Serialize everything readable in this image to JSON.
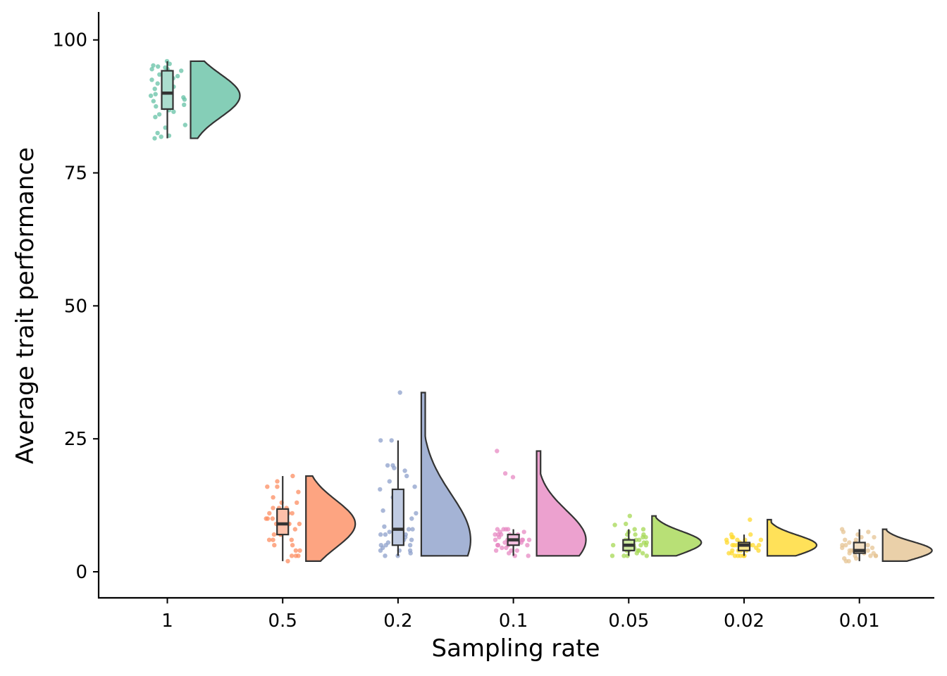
{
  "chart_data": {
    "type": "raincloud",
    "xlabel": "Sampling rate",
    "ylabel": "Average trait performance",
    "ylim": [
      -5,
      105
    ],
    "yticks": [
      0,
      25,
      50,
      75,
      100
    ],
    "grid": false,
    "legend": "none",
    "groups": [
      {
        "label": "1",
        "color": "#66C2A5",
        "box": {
          "min": 81.5,
          "q1": 87,
          "median": 90,
          "q3": 94.2,
          "max": 96
        },
        "violin": {
          "min": 81.5,
          "max": 96,
          "mode": 89.5
        },
        "points": [
          96,
          95.5,
          95.2,
          95,
          94.8,
          94.5,
          94.5,
          94.2,
          94,
          93.8,
          93.5,
          93.2,
          92.8,
          92.5,
          92,
          91.8,
          91.2,
          90.8,
          90.5,
          90,
          89.8,
          89.5,
          89.2,
          88.8,
          88.5,
          88,
          87.8,
          87.5,
          87.2,
          86.8,
          86.5,
          86,
          85.5,
          84,
          83.5,
          82.5,
          82,
          81.8,
          81.5
        ]
      },
      {
        "label": "0.5",
        "color": "#FC8D62",
        "box": {
          "min": 2,
          "q1": 7,
          "median": 9,
          "q3": 11.8,
          "max": 18
        },
        "violin": {
          "min": 2,
          "max": 18,
          "mode": 9
        },
        "points": [
          18,
          17,
          16,
          16,
          15,
          14,
          13,
          13,
          12,
          12,
          12,
          11,
          11,
          11,
          10,
          10,
          10,
          10,
          9,
          9,
          9,
          9,
          9,
          8,
          8,
          8,
          8,
          7,
          7,
          7,
          6,
          6,
          6,
          5,
          5,
          4,
          4,
          3,
          3,
          3,
          2
        ]
      },
      {
        "label": "0.2",
        "color": "#8DA0CB",
        "box": {
          "min": 3,
          "q1": 5,
          "median": 8,
          "q3": 15.5,
          "max": 24.7
        },
        "violin": {
          "min": 3,
          "max": 33.7,
          "mode": 6
        },
        "points": [
          33.7,
          24.7,
          24.7,
          20,
          20,
          19.5,
          19,
          18,
          17,
          16,
          15.5,
          14,
          13,
          12,
          11.5,
          11,
          10,
          10,
          9,
          9,
          8.5,
          8,
          8,
          7.5,
          7,
          7,
          7,
          6.5,
          6,
          6,
          5.5,
          5,
          5,
          5,
          4.5,
          4,
          4,
          4,
          3.5,
          3,
          3
        ]
      },
      {
        "label": "0.1",
        "color": "#E78AC3",
        "box": {
          "min": 3,
          "q1": 5,
          "median": 6,
          "q3": 7,
          "max": 8
        },
        "violin": {
          "min": 3,
          "max": 22.7,
          "mode": 6
        },
        "points": [
          22.7,
          18.5,
          17.8,
          8,
          8,
          8,
          8,
          7.5,
          7.5,
          7,
          7,
          7,
          7,
          7,
          6.5,
          6.5,
          6,
          6,
          6,
          6,
          6,
          6,
          6,
          5.5,
          5.5,
          5.5,
          5,
          5,
          5,
          5,
          5,
          4.5,
          4.5,
          4,
          4,
          4,
          3.5,
          3,
          3
        ]
      },
      {
        "label": "0.05",
        "color": "#A6D854",
        "box": {
          "min": 3,
          "q1": 4,
          "median": 5,
          "q3": 6,
          "max": 8
        },
        "violin": {
          "min": 3,
          "max": 10.5,
          "mode": 5.5
        },
        "points": [
          10.5,
          9,
          8.8,
          8,
          8,
          7.5,
          7,
          7,
          7,
          6.5,
          6.5,
          6,
          6,
          6,
          6,
          5.5,
          5.5,
          5.5,
          5,
          5,
          5,
          5,
          5,
          4.5,
          4.5,
          4.5,
          4,
          4,
          4,
          4,
          3.5,
          3.5,
          3,
          3,
          3,
          3
        ]
      },
      {
        "label": "0.02",
        "color": "#FFD92F",
        "box": {
          "min": 3,
          "q1": 4,
          "median": 5,
          "q3": 5.5,
          "max": 7
        },
        "violin": {
          "min": 3,
          "max": 9.8,
          "mode": 5
        },
        "points": [
          9.8,
          7,
          7,
          6.5,
          6.5,
          6,
          6,
          6,
          6,
          5.5,
          5.5,
          5.5,
          5,
          5,
          5,
          5,
          5,
          5,
          4.5,
          4.5,
          4.5,
          4,
          4,
          4,
          4,
          4,
          3.5,
          3.5,
          3,
          3,
          3,
          3,
          3
        ]
      },
      {
        "label": "0.01",
        "color": "#E5C494",
        "box": {
          "min": 2,
          "q1": 3.5,
          "median": 4,
          "q3": 5.5,
          "max": 8
        },
        "violin": {
          "min": 2,
          "max": 8,
          "mode": 4
        },
        "points": [
          8,
          7.5,
          7.5,
          7,
          6.5,
          6.5,
          6,
          6,
          5.5,
          5.5,
          5,
          5,
          5,
          4.5,
          4.5,
          4.5,
          4,
          4,
          4,
          4,
          4,
          3.5,
          3.5,
          3.5,
          3,
          3,
          3,
          3,
          2.5,
          2.5,
          2,
          2
        ]
      }
    ]
  }
}
